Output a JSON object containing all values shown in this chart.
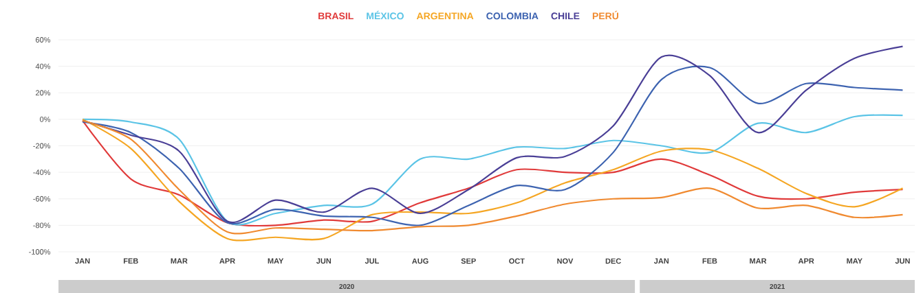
{
  "chart_data": {
    "type": "line",
    "categories": [
      "JAN",
      "FEB",
      "MAR",
      "APR",
      "MAY",
      "JUN",
      "JUL",
      "AUG",
      "SEP",
      "OCT",
      "NOV",
      "DEC",
      "JAN",
      "FEB",
      "MAR",
      "APR",
      "MAY",
      "JUN"
    ],
    "series": [
      {
        "name": "BRASIL",
        "color": "#e03a3a",
        "values": [
          -1,
          -45,
          -57,
          -78,
          -80,
          -76,
          -77,
          -63,
          -52,
          -38,
          -40,
          -40,
          -30,
          -42,
          -58,
          -60,
          -55,
          -53
        ]
      },
      {
        "name": "MÉXICO",
        "color": "#5bc4e6",
        "values": [
          0,
          -2,
          -15,
          -77,
          -71,
          -65,
          -64,
          -30,
          -30,
          -21,
          -22,
          -16,
          -20,
          -25,
          -3,
          -10,
          2,
          3
        ]
      },
      {
        "name": "ARGENTINA",
        "color": "#f5a623",
        "values": [
          0,
          -22,
          -62,
          -90,
          -89,
          -90,
          -72,
          -70,
          -71,
          -63,
          -48,
          -38,
          -24,
          -23,
          -37,
          -56,
          -66,
          -52
        ]
      },
      {
        "name": "COLOMBIA",
        "color": "#3d63b0",
        "values": [
          -2,
          -10,
          -37,
          -78,
          -68,
          -73,
          -74,
          -80,
          -65,
          -50,
          -53,
          -25,
          30,
          39,
          12,
          27,
          24,
          22
        ]
      },
      {
        "name": "CHILE",
        "color": "#4a3f96",
        "values": [
          -1,
          -12,
          -24,
          -77,
          -61,
          -70,
          -52,
          -71,
          -53,
          -29,
          -28,
          -5,
          47,
          33,
          -10,
          22,
          46,
          55
        ]
      },
      {
        "name": "PERÚ",
        "color": "#f08a30",
        "values": [
          -1,
          -15,
          -53,
          -85,
          -82,
          -83,
          -84,
          -81,
          -80,
          -73,
          -64,
          -60,
          -59,
          -52,
          -67,
          -65,
          -74,
          -72
        ]
      }
    ],
    "ylim": [
      -100,
      60
    ],
    "yticks": [
      {
        "value": -100,
        "label": "-100%"
      },
      {
        "value": -80,
        "label": "-80%"
      },
      {
        "value": -60,
        "label": "-60%"
      },
      {
        "value": -40,
        "label": "-40%"
      },
      {
        "value": -20,
        "label": "-20%"
      },
      {
        "value": 0,
        "label": "0%"
      },
      {
        "value": 20,
        "label": "20%"
      },
      {
        "value": 40,
        "label": "40%"
      },
      {
        "value": 60,
        "label": "60%"
      }
    ],
    "grid": "y",
    "legend": "top",
    "line_style": "solid",
    "marker": "none",
    "annotations": [
      "2020",
      "2021"
    ]
  }
}
